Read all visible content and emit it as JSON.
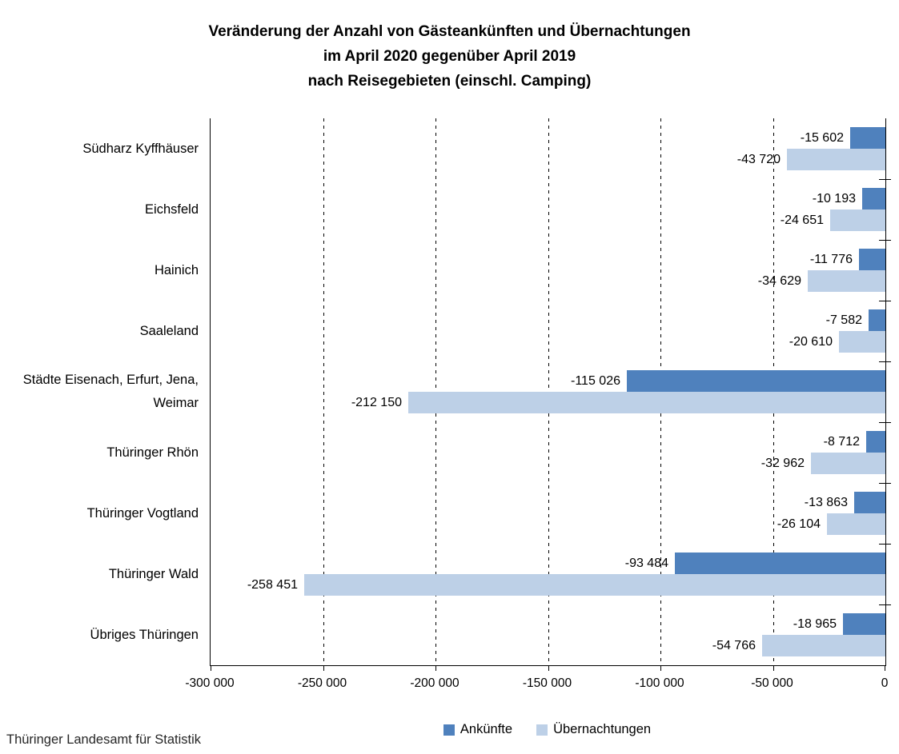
{
  "title": {
    "line1": "Veränderung der Anzahl von Gästeankünften und Übernachtungen",
    "line2": "im April 2020 gegenüber April 2019",
    "line3": "nach Reisegebieten (einschl. Camping)"
  },
  "source": "Thüringer Landesamt für Statistik",
  "colors": {
    "ankuenfte": "#4F81BD",
    "uebernachtungen": "#BDD0E7",
    "axis": "#000000",
    "text": "#000000"
  },
  "chart_data": {
    "type": "bar",
    "orientation": "horizontal",
    "title": "Veränderung der Anzahl von Gästeankünften und Übernachtungen im April 2020 gegenüber April 2019 nach Reisegebieten (einschl. Camping)",
    "categories": [
      "Südharz Kyffhäuser",
      "Eichsfeld",
      "Hainich",
      "Saaleland",
      "Städte Eisenach, Erfurt, Jena, Weimar",
      "Thüringer Rhön",
      "Thüringer Vogtland",
      "Thüringer Wald",
      "Übriges Thüringen"
    ],
    "series": [
      {
        "name": "Ankünfte",
        "color": "#4F81BD",
        "values": [
          -15602,
          -10193,
          -11776,
          -7582,
          -115026,
          -8712,
          -13863,
          -93484,
          -18965
        ],
        "labels": [
          "-15 602",
          "-10 193",
          "-11 776",
          "-7 582",
          "-115 026",
          "-8 712",
          "-13 863",
          "-93 484",
          "-18 965"
        ]
      },
      {
        "name": "Übernachtungen",
        "color": "#BDD0E7",
        "values": [
          -43720,
          -24651,
          -34629,
          -20610,
          -212150,
          -32962,
          -26104,
          -258451,
          -54766
        ],
        "labels": [
          "-43 720",
          "-24 651",
          "-34 629",
          "-20 610",
          "-212 150",
          "-32 962",
          "-26 104",
          "-258 451",
          "-54 766"
        ]
      }
    ],
    "xlim": [
      -300000,
      0
    ],
    "x_ticks": [
      -300000,
      -250000,
      -200000,
      -150000,
      -100000,
      -50000,
      0
    ],
    "x_tick_labels": [
      "-300 000",
      "-250 000",
      "-200 000",
      "-150 000",
      "-100 000",
      "-50 000",
      "0"
    ],
    "grid": "dashed-vertical",
    "legend_position": "bottom",
    "value_labels": "outside-end"
  }
}
